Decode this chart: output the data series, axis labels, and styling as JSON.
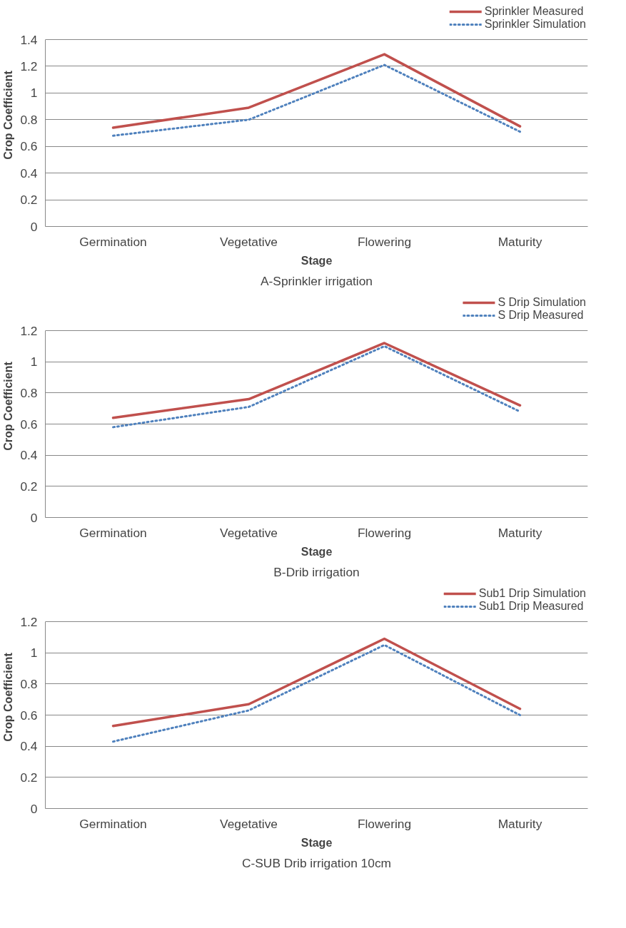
{
  "chart_data": [
    {
      "type": "line",
      "categories": [
        "Germination",
        "Vegetative",
        "Flowering",
        "Maturity"
      ],
      "xlabel": "Stage",
      "ylabel": "Crop Coefficient",
      "ylim": [
        0,
        1.4
      ],
      "yticks": [
        0,
        0.2,
        0.4,
        0.6,
        0.8,
        1,
        1.2,
        1.4
      ],
      "grid": "y",
      "legend": "top right",
      "marker": "none",
      "annotations": [
        "A-Sprinkler irrigation"
      ],
      "series": [
        {
          "name": "Sprinkler Measured",
          "color": "#c0504d",
          "line_style": "solid",
          "values": [
            0.74,
            0.89,
            1.29,
            0.75
          ]
        },
        {
          "name": "Sprinkler Simulation",
          "color": "#4f81bd",
          "line_style": "dotted",
          "values": [
            0.68,
            0.8,
            1.21,
            0.71
          ]
        }
      ]
    },
    {
      "type": "line",
      "categories": [
        "Germination",
        "Vegetative",
        "Flowering",
        "Maturity"
      ],
      "xlabel": "Stage",
      "ylabel": "Crop Coefficient",
      "ylim": [
        0,
        1.2
      ],
      "yticks": [
        0,
        0.2,
        0.4,
        0.6,
        0.8,
        1,
        1.2
      ],
      "grid": "y",
      "legend": "top right",
      "marker": "none",
      "annotations": [
        "B-Drib irrigation"
      ],
      "series": [
        {
          "name": "S Drip Simulation",
          "color": "#c0504d",
          "line_style": "solid",
          "values": [
            0.64,
            0.76,
            1.12,
            0.72
          ]
        },
        {
          "name": "S Drip Measured",
          "color": "#4f81bd",
          "line_style": "dotted",
          "values": [
            0.58,
            0.71,
            1.1,
            0.68
          ]
        }
      ]
    },
    {
      "type": "line",
      "categories": [
        "Germination",
        "Vegetative",
        "Flowering",
        "Maturity"
      ],
      "xlabel": "Stage",
      "ylabel": "Crop Coefficient",
      "ylim": [
        0,
        1.2
      ],
      "yticks": [
        0,
        0.2,
        0.4,
        0.6,
        0.8,
        1,
        1.2
      ],
      "grid": "y",
      "legend": "top right",
      "marker": "none",
      "annotations": [
        "C-SUB Drib irrigation 10cm"
      ],
      "series": [
        {
          "name": "Sub1 Drip Simulation",
          "color": "#c0504d",
          "line_style": "solid",
          "values": [
            0.53,
            0.67,
            1.09,
            0.64
          ]
        },
        {
          "name": "Sub1 Drip Measured",
          "color": "#4f81bd",
          "line_style": "dotted",
          "values": [
            0.43,
            0.63,
            1.05,
            0.6
          ]
        }
      ]
    }
  ]
}
